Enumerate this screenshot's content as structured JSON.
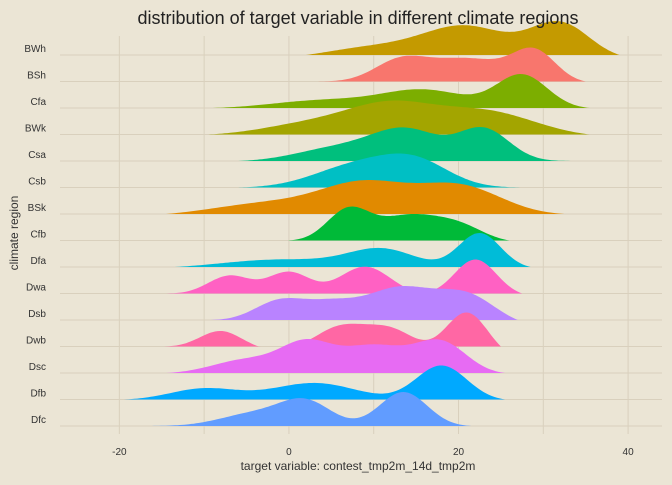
{
  "chart_data": {
    "type": "area",
    "subtype": "ridgeline-density",
    "title": "distribution of target variable in different climate regions",
    "xlabel": "target variable: contest_tmp2m_14d_tmp2m",
    "ylabel": "climate region",
    "xlim": [
      -27,
      44
    ],
    "x_ticks": [
      -20,
      0,
      20,
      40
    ],
    "grid": true,
    "legend": "none",
    "series": [
      {
        "name": "BWh",
        "color": "#c49a00",
        "x_range": [
          2,
          39
        ],
        "peaks": [
          [
            10,
            6,
            0.35
          ],
          [
            21,
            5,
            0.9
          ],
          [
            32,
            3.5,
            1.0
          ]
        ]
      },
      {
        "name": "BSh",
        "color": "#f8766d",
        "x_range": [
          2.5,
          35
        ],
        "peaks": [
          [
            13,
            3,
            0.65
          ],
          [
            21,
            5,
            0.85
          ],
          [
            29,
            2.5,
            1.0
          ]
        ]
      },
      {
        "name": "Cfa",
        "color": "#7cae00",
        "x_range": [
          -9,
          35.5
        ],
        "peaks": [
          [
            4,
            6,
            0.25
          ],
          [
            16,
            5,
            0.55
          ],
          [
            27.5,
            3,
            1.0
          ]
        ]
      },
      {
        "name": "BWk",
        "color": "#a3a500",
        "x_range": [
          -9.5,
          35.5
        ],
        "peaks": [
          [
            3,
            6,
            0.35
          ],
          [
            12,
            5,
            0.75
          ],
          [
            23,
            6,
            0.7
          ]
        ]
      },
      {
        "name": "Csa",
        "color": "#00bf7d",
        "x_range": [
          -6,
          33.5
        ],
        "peaks": [
          [
            6,
            5,
            0.35
          ],
          [
            14,
            4,
            0.75
          ],
          [
            23,
            3,
            0.8
          ]
        ]
      },
      {
        "name": "Csb",
        "color": "#00bfc4",
        "x_range": [
          -6,
          27.5
        ],
        "peaks": [
          [
            8,
            5,
            0.8
          ],
          [
            15,
            4,
            0.85
          ]
        ]
      },
      {
        "name": "BSk",
        "color": "#e18a00",
        "x_range": [
          -14.5,
          32.5
        ],
        "peaks": [
          [
            -2,
            7,
            0.25
          ],
          [
            9,
            5,
            0.55
          ],
          [
            20,
            5,
            0.55
          ]
        ]
      },
      {
        "name": "Cfb",
        "color": "#00ba38",
        "x_range": [
          -8.5,
          26
        ],
        "peaks": [
          [
            7,
            2.5,
            1.0
          ],
          [
            14,
            3.5,
            0.8
          ],
          [
            20,
            3,
            0.5
          ]
        ]
      },
      {
        "name": "Dfa",
        "color": "#00bcd8",
        "x_range": [
          -13.5,
          28.5
        ],
        "peaks": [
          [
            -1,
            7,
            0.25
          ],
          [
            11,
            4,
            0.5
          ],
          [
            22.5,
            2.5,
            0.95
          ]
        ]
      },
      {
        "name": "Dwa",
        "color": "#ff61c3",
        "x_range": [
          -14.5,
          27.5
        ],
        "peaks": [
          [
            -7,
            2.5,
            0.45
          ],
          [
            0,
            2.5,
            0.55
          ],
          [
            9,
            3,
            0.7
          ],
          [
            22,
            2.5,
            0.9
          ]
        ]
      },
      {
        "name": "Dsb",
        "color": "#b983ff",
        "x_range": [
          -11.5,
          27
        ],
        "peaks": [
          [
            -1,
            3,
            0.5
          ],
          [
            5,
            3,
            0.4
          ],
          [
            13,
            4,
            0.85
          ],
          [
            21,
            3.5,
            0.7
          ]
        ]
      },
      {
        "name": "Dwb",
        "color": "#ff67a4",
        "x_range": [
          -15,
          25
        ],
        "peaks": [
          [
            -8,
            2.5,
            0.4
          ],
          [
            6,
            3,
            0.55
          ],
          [
            12,
            3,
            0.55
          ],
          [
            21,
            2.5,
            1.0
          ]
        ]
      },
      {
        "name": "Dsc",
        "color": "#e76bf3",
        "x_range": [
          -14.5,
          25.5
        ],
        "peaks": [
          [
            -5,
            4,
            0.3
          ],
          [
            2,
            3,
            0.6
          ],
          [
            10,
            4,
            0.6
          ],
          [
            18,
            3,
            0.65
          ]
        ]
      },
      {
        "name": "Dfb",
        "color": "#00a9ff",
        "x_range": [
          -19.5,
          25.5
        ],
        "peaks": [
          [
            -10,
            4,
            0.2
          ],
          [
            3,
            5,
            0.3
          ],
          [
            18,
            3,
            0.6
          ]
        ]
      },
      {
        "name": "Dfc",
        "color": "#619cff",
        "x_range": [
          -17,
          21.5
        ],
        "peaks": [
          [
            -4,
            4,
            0.35
          ],
          [
            2,
            3,
            0.65
          ],
          [
            13.5,
            2.8,
            0.95
          ]
        ]
      }
    ]
  }
}
